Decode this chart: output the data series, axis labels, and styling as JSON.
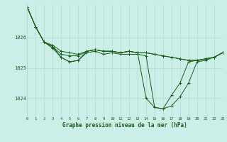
{
  "background_color": "#cceee8",
  "grid_color": "#aaddcc",
  "line_color": "#1a5c1a",
  "marker_color": "#1a5c1a",
  "xlabel": "Graphe pression niveau de la mer (hPa)",
  "xlim": [
    0,
    23
  ],
  "ylim": [
    1023.4,
    1027.1
  ],
  "yticks": [
    1024,
    1025,
    1026
  ],
  "xticks": [
    0,
    1,
    2,
    3,
    4,
    5,
    6,
    7,
    8,
    9,
    10,
    11,
    12,
    13,
    14,
    15,
    16,
    17,
    18,
    19,
    20,
    21,
    22,
    23
  ],
  "series": [
    [
      1027.0,
      1026.35,
      1025.85,
      1025.75,
      1025.55,
      1025.5,
      1025.45,
      1025.55,
      1025.6,
      1025.55,
      1025.55,
      1025.5,
      1025.55,
      1025.5,
      1025.5,
      1025.45,
      1025.4,
      1025.35,
      1025.3,
      1025.25,
      1025.25,
      1025.3,
      1025.35,
      1025.5
    ],
    [
      1027.0,
      1026.35,
      1025.85,
      1025.7,
      1025.45,
      1025.4,
      1025.4,
      1025.55,
      1025.6,
      1025.55,
      1025.55,
      1025.5,
      1025.55,
      1025.5,
      1025.5,
      1025.45,
      1025.4,
      1025.35,
      1025.3,
      1025.25,
      1025.25,
      1025.3,
      1025.35,
      1025.5
    ],
    [
      1027.0,
      1026.35,
      1025.85,
      1025.65,
      1025.35,
      1025.2,
      1025.25,
      1025.5,
      1025.55,
      1025.45,
      1025.5,
      1025.45,
      1025.45,
      1025.45,
      1025.4,
      1023.7,
      1023.65,
      1023.75,
      1024.05,
      1024.5,
      1025.2,
      1025.25,
      1025.35,
      1025.5
    ],
    [
      1027.0,
      1026.35,
      1025.85,
      1025.7,
      1025.35,
      1025.2,
      1025.25,
      1025.55,
      1025.6,
      1025.55,
      1025.55,
      1025.5,
      1025.55,
      1025.5,
      1024.0,
      1023.7,
      1023.65,
      1024.1,
      1024.5,
      1025.2,
      1025.25,
      1025.3,
      1025.35,
      1025.5
    ]
  ]
}
